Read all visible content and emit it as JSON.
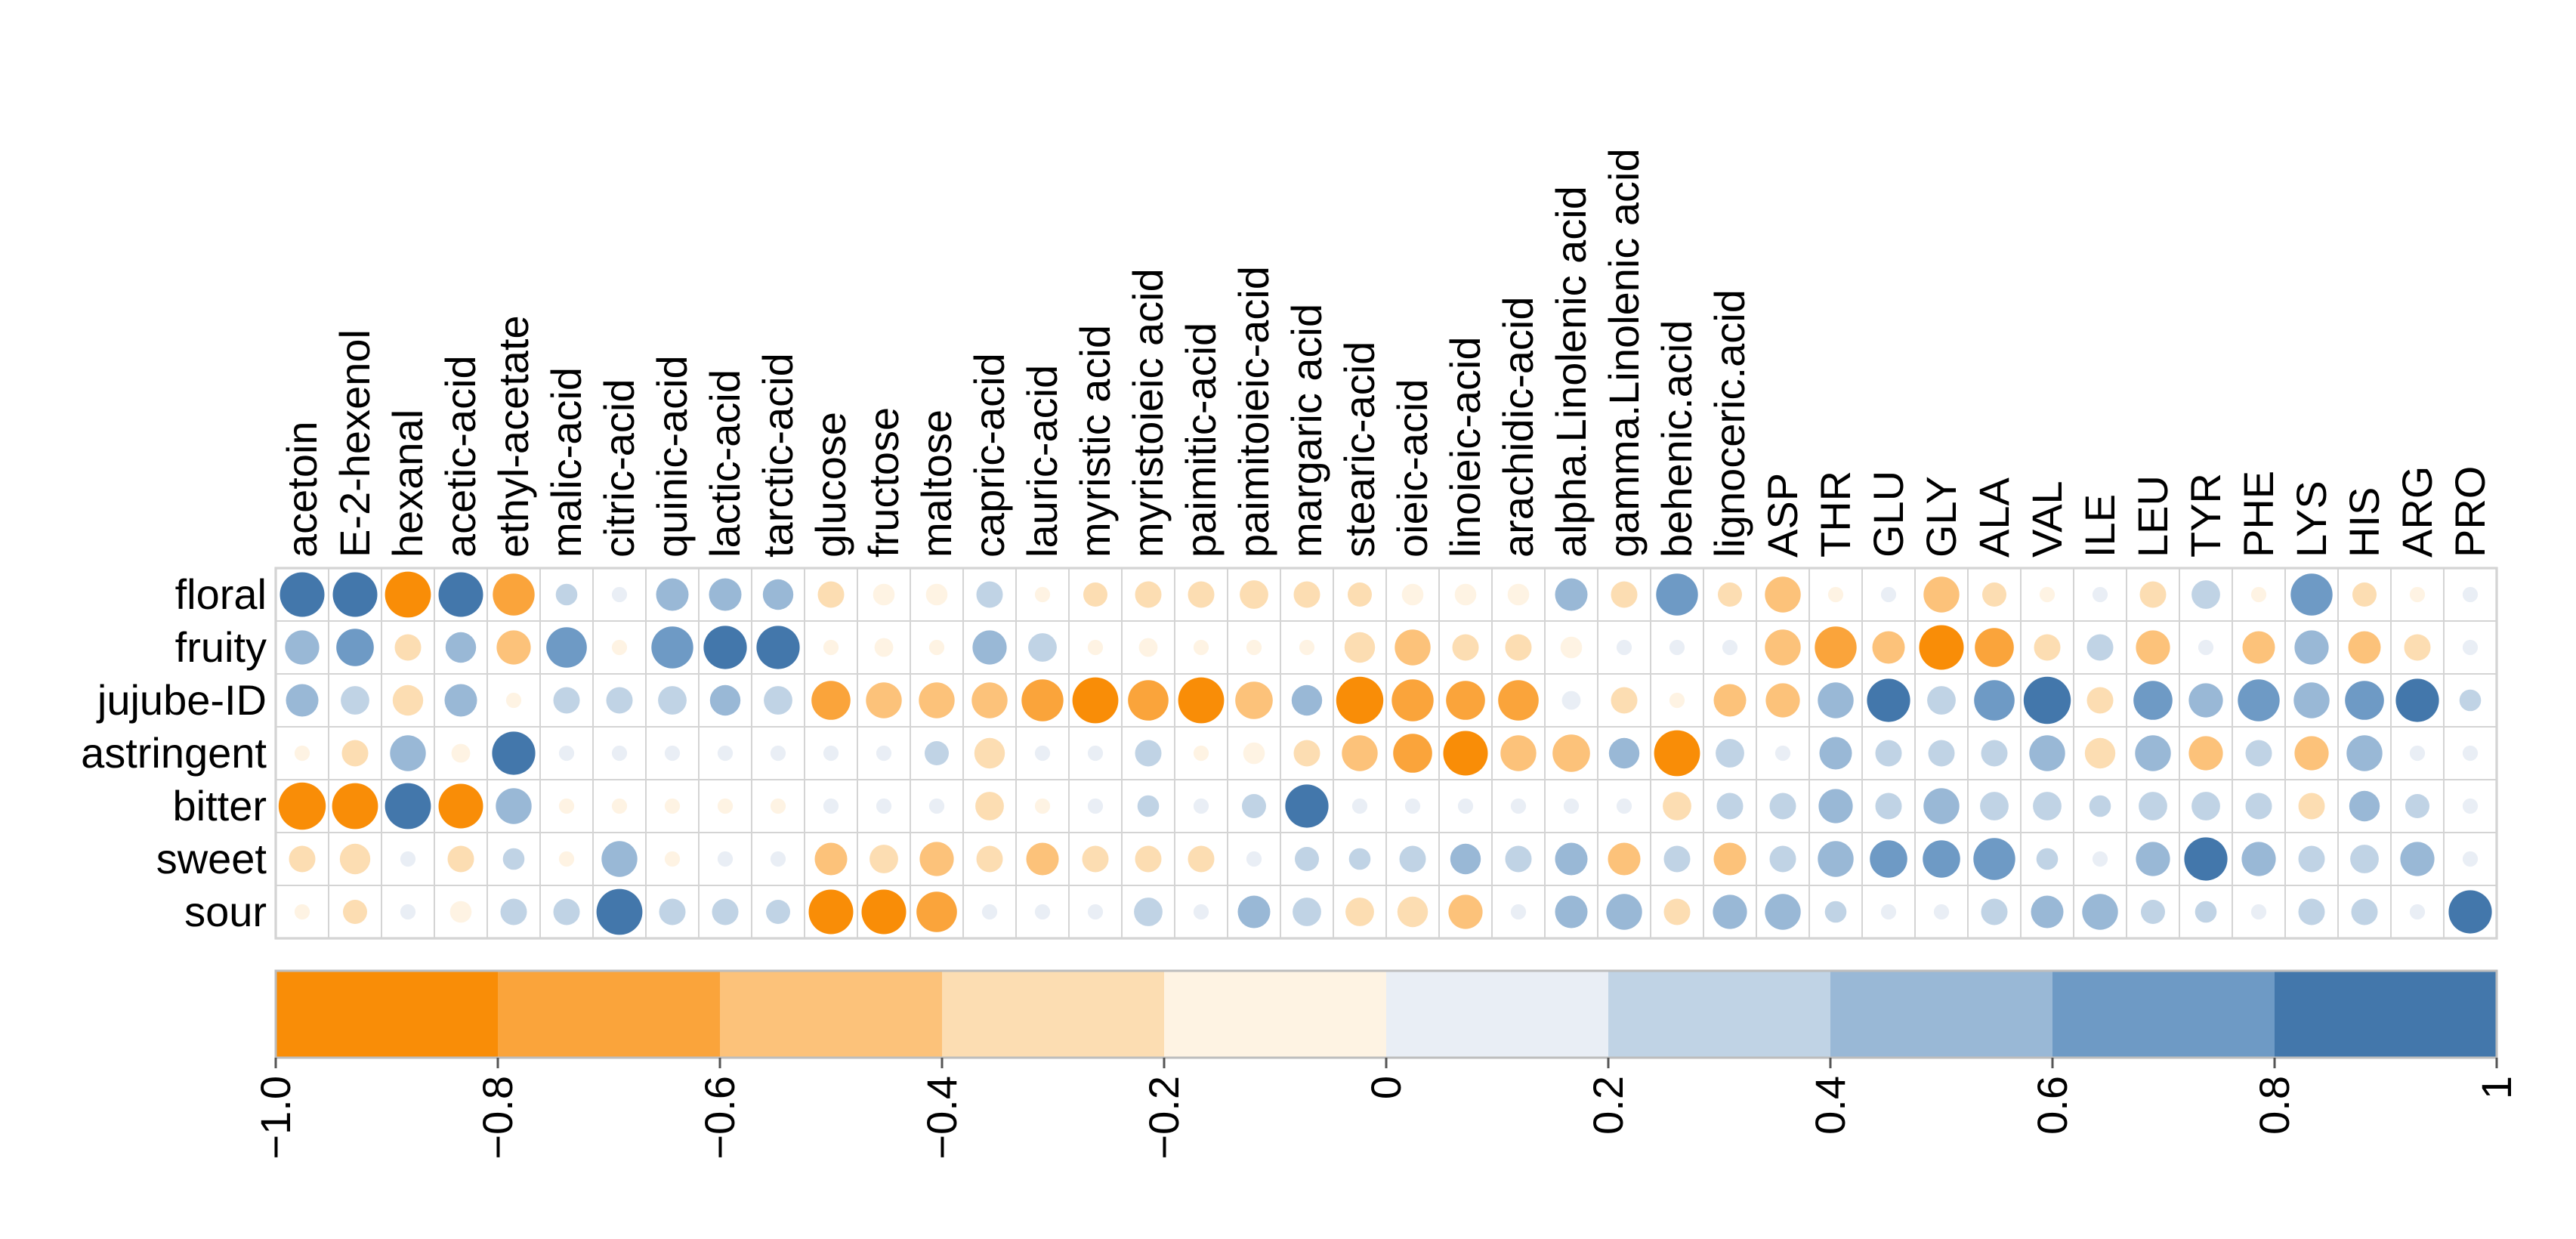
{
  "chart_data": {
    "type": "heatmap",
    "title": "",
    "xlabel": "",
    "ylabel": "",
    "grid": true,
    "shape": "circle",
    "legend_placement": "bottom",
    "columns": [
      "acetoin",
      "E-2-hexenol",
      "hexanal",
      "acetic-acid",
      "ethyl-acetate",
      "malic-acid",
      "citric-acid",
      "quinic-acid",
      "lactic-acid",
      "tarctic-acid",
      "glucose",
      "fructose",
      "maltose",
      "capric-acid",
      "lauric-acid",
      "myristic acid",
      "myristoieic acid",
      "paimitic-acid",
      "paimitoieic-acid",
      "margaric acid",
      "stearic-acid",
      "oieic-acid",
      "linoieic-acid",
      "arachidic-acid",
      "alpha.Linolenic acid",
      "gamma.Linolenic acid",
      "behenic.acid",
      "lignoceric.acid",
      "ASP",
      "THR",
      "GLU",
      "GLY",
      "ALA",
      "VAL",
      "ILE",
      "LEU",
      "TYR",
      "PHE",
      "LYS",
      "HIS",
      "ARG",
      "PRO"
    ],
    "rows": [
      "floral",
      "fruity",
      "jujube-ID",
      "astringent",
      "bitter",
      "sweet",
      "sour"
    ],
    "values": [
      [
        0.85,
        0.85,
        -0.9,
        0.85,
        -0.75,
        0.2,
        0.1,
        0.45,
        0.45,
        0.4,
        -0.3,
        -0.2,
        -0.2,
        0.3,
        -0.1,
        -0.25,
        -0.3,
        -0.3,
        -0.35,
        -0.3,
        -0.25,
        -0.2,
        -0.2,
        -0.2,
        0.45,
        -0.3,
        0.75,
        -0.25,
        -0.55,
        -0.1,
        0.1,
        -0.55,
        -0.25,
        -0.1,
        0.1,
        -0.3,
        0.35,
        -0.1,
        0.75,
        -0.25,
        -0.1,
        0.1
      ],
      [
        0.5,
        0.6,
        -0.3,
        0.4,
        -0.5,
        0.7,
        -0.1,
        0.75,
        0.8,
        0.8,
        -0.1,
        -0.15,
        -0.1,
        0.5,
        0.35,
        -0.1,
        -0.15,
        -0.1,
        -0.1,
        -0.1,
        -0.4,
        -0.55,
        -0.3,
        -0.3,
        -0.2,
        0.1,
        0.1,
        0.1,
        -0.55,
        -0.75,
        -0.45,
        -0.85,
        -0.65,
        -0.3,
        0.3,
        -0.5,
        0.1,
        -0.45,
        0.5,
        -0.45,
        -0.3,
        0.1
      ],
      [
        0.45,
        0.35,
        -0.4,
        0.45,
        -0.1,
        0.3,
        0.3,
        0.35,
        0.4,
        0.35,
        -0.65,
        -0.55,
        -0.55,
        -0.55,
        -0.75,
        -0.9,
        -0.7,
        -0.9,
        -0.6,
        0.4,
        -0.95,
        -0.75,
        -0.65,
        -0.7,
        0.15,
        -0.3,
        -0.1,
        -0.45,
        -0.5,
        0.55,
        0.8,
        0.35,
        0.7,
        0.95,
        -0.3,
        0.65,
        0.5,
        0.75,
        0.55,
        0.65,
        0.8,
        0.2
      ],
      [
        -0.1,
        -0.3,
        0.55,
        -0.15,
        0.8,
        0.1,
        0.1,
        0.1,
        0.1,
        0.1,
        0.1,
        0.1,
        0.25,
        -0.4,
        0.1,
        0.1,
        0.3,
        -0.1,
        -0.2,
        -0.3,
        -0.55,
        -0.65,
        -0.85,
        -0.55,
        -0.6,
        0.4,
        -0.9,
        0.35,
        0.1,
        0.45,
        0.3,
        0.3,
        0.3,
        0.55,
        -0.4,
        0.55,
        -0.5,
        0.3,
        -0.5,
        0.55,
        0.1,
        0.1
      ],
      [
        -0.95,
        -0.9,
        0.9,
        -0.85,
        0.55,
        -0.1,
        -0.1,
        -0.1,
        -0.1,
        -0.1,
        0.1,
        0.1,
        0.1,
        -0.35,
        -0.1,
        0.1,
        0.2,
        0.1,
        0.25,
        0.8,
        0.1,
        0.1,
        0.1,
        0.1,
        0.1,
        0.1,
        -0.35,
        0.3,
        0.3,
        0.5,
        0.3,
        0.55,
        0.35,
        0.35,
        0.2,
        0.35,
        0.35,
        0.3,
        -0.3,
        0.4,
        0.25,
        0.1
      ],
      [
        -0.3,
        -0.4,
        0.1,
        -0.3,
        0.2,
        -0.1,
        0.55,
        -0.1,
        0.1,
        0.1,
        -0.45,
        -0.35,
        -0.5,
        -0.3,
        -0.45,
        -0.3,
        -0.3,
        -0.3,
        0.1,
        0.25,
        0.2,
        0.3,
        0.4,
        0.3,
        0.45,
        -0.45,
        0.3,
        -0.45,
        0.3,
        0.55,
        0.6,
        0.6,
        0.75,
        0.2,
        0.1,
        0.5,
        0.8,
        0.5,
        0.3,
        0.35,
        0.5,
        0.1
      ],
      [
        -0.1,
        -0.25,
        0.1,
        -0.2,
        0.3,
        0.3,
        0.9,
        0.3,
        0.3,
        0.25,
        -0.85,
        -0.85,
        -0.7,
        0.1,
        0.1,
        0.1,
        0.35,
        0.1,
        0.45,
        0.35,
        -0.35,
        -0.4,
        -0.5,
        0.1,
        0.45,
        0.55,
        -0.3,
        0.5,
        0.55,
        0.2,
        0.1,
        0.1,
        0.3,
        0.45,
        0.55,
        0.25,
        0.2,
        0.1,
        0.3,
        0.3,
        0.1,
        0.8
      ]
    ],
    "scale": {
      "min": -1,
      "max": 1,
      "colors": [
        "#F98D07",
        "#FAA43B",
        "#FCC27A",
        "#FCDDB2",
        "#FEF3E3",
        "#E9EEF5",
        "#C0D3E5",
        "#99B8D6",
        "#6E9AC5",
        "#4377AB"
      ],
      "ticks": [
        "−1.0",
        "−0.8",
        "−0.6",
        "−0.4",
        "−0.2",
        "0",
        "0.2",
        "0.4",
        "0.6",
        "0.8",
        "1"
      ]
    }
  }
}
